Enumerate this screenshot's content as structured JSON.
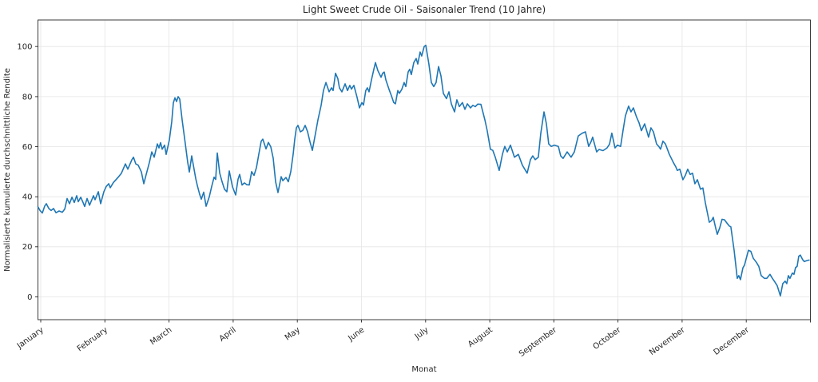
{
  "figure": {
    "title": "Light Sweet Crude Oil - Saisonaler Trend (10 Jahre)",
    "x_axis_label": "Monat",
    "y_axis_label": "Normalisierte kumulierte durchschnittliche Rendite"
  },
  "colors": {
    "line": "#1f77b4",
    "grid": "#e5e5e5",
    "spine": "#262626",
    "text": "#262626",
    "background": "#ffffff"
  },
  "chart_data": {
    "type": "line",
    "title": "Light Sweet Crude Oil - Saisonaler Trend (10 Jahre)",
    "xlabel": "Monat",
    "ylabel": "Normalisierte kumulierte durchschnittliche Rendite",
    "categories": [
      "January",
      "February",
      "March",
      "April",
      "May",
      "June",
      "July",
      "August",
      "September",
      "October",
      "November",
      "December"
    ],
    "x_tick_positions": [
      0,
      1,
      2,
      3,
      4,
      5,
      6,
      7,
      8,
      9,
      10,
      11
    ],
    "x_units": "month_index (0 = January tick, fractional = position within month)",
    "yticks": [
      0,
      20,
      40,
      60,
      80,
      100
    ],
    "xlim": [
      -0.044,
      12.0
    ],
    "ylim": [
      -9.1,
      110.6
    ],
    "grid": true,
    "legend": false,
    "line_color": "#1f77b4",
    "series": [
      {
        "x": [
          -0.044,
          -0.012,
          0.025,
          0.062,
          0.087,
          0.125,
          0.162,
          0.199,
          0.237,
          0.286,
          0.336,
          0.374,
          0.411,
          0.448,
          0.486,
          0.523,
          0.56,
          0.585,
          0.623,
          0.66,
          0.685,
          0.722,
          0.76,
          0.822,
          0.847,
          0.897,
          0.934,
          0.984,
          1.021,
          1.059,
          1.083,
          1.133,
          1.171,
          1.208,
          1.258,
          1.32,
          1.357,
          1.42,
          1.445,
          1.482,
          1.519,
          1.569,
          1.606,
          1.644,
          1.694,
          1.731,
          1.768,
          1.818,
          1.843,
          1.868,
          1.893,
          1.93,
          1.955,
          2.005,
          2.042,
          2.067,
          2.092,
          2.117,
          2.142,
          2.167,
          2.204,
          2.254,
          2.291,
          2.316,
          2.354,
          2.416,
          2.441,
          2.478,
          2.503,
          2.54,
          2.578,
          2.628,
          2.665,
          2.702,
          2.727,
          2.752,
          2.79,
          2.827,
          2.864,
          2.902,
          2.939,
          2.989,
          3.039,
          3.076,
          3.101,
          3.138,
          3.176,
          3.213,
          3.25,
          3.288,
          3.325,
          3.362,
          3.4,
          3.437,
          3.462,
          3.512,
          3.549,
          3.587,
          3.624,
          3.661,
          3.699,
          3.748,
          3.773,
          3.823,
          3.86,
          3.898,
          3.935,
          3.96,
          3.985,
          4.01,
          4.047,
          4.085,
          4.122,
          4.159,
          4.197,
          4.234,
          4.284,
          4.321,
          4.371,
          4.408,
          4.446,
          4.496,
          4.533,
          4.558,
          4.595,
          4.632,
          4.657,
          4.695,
          4.745,
          4.782,
          4.819,
          4.844,
          4.882,
          4.932,
          4.969,
          5.006,
          5.031,
          5.068,
          5.093,
          5.118,
          5.156,
          5.193,
          5.218,
          5.255,
          5.305,
          5.33,
          5.355,
          5.38,
          5.43,
          5.467,
          5.504,
          5.529,
          5.567,
          5.591,
          5.629,
          5.666,
          5.691,
          5.728,
          5.753,
          5.778,
          5.816,
          5.853,
          5.878,
          5.915,
          5.94,
          5.978,
          6.003,
          6.052,
          6.09,
          6.127,
          6.164,
          6.202,
          6.239,
          6.277,
          6.326,
          6.364,
          6.401,
          6.451,
          6.488,
          6.526,
          6.575,
          6.613,
          6.65,
          6.7,
          6.737,
          6.775,
          6.812,
          6.862,
          6.924,
          6.961,
          7.011,
          7.048,
          7.086,
          7.148,
          7.198,
          7.235,
          7.273,
          7.323,
          7.385,
          7.447,
          7.509,
          7.584,
          7.634,
          7.671,
          7.709,
          7.758,
          7.796,
          7.846,
          7.883,
          7.92,
          7.958,
          8.008,
          8.07,
          8.107,
          8.144,
          8.207,
          8.269,
          8.319,
          8.381,
          8.443,
          8.493,
          8.543,
          8.58,
          8.605,
          8.667,
          8.705,
          8.767,
          8.829,
          8.867,
          8.904,
          8.954,
          8.991,
          9.041,
          9.078,
          9.115,
          9.165,
          9.203,
          9.24,
          9.29,
          9.327,
          9.365,
          9.415,
          9.452,
          9.477,
          9.514,
          9.552,
          9.601,
          9.639,
          9.664,
          9.701,
          9.739,
          9.801,
          9.838,
          9.863,
          9.9,
          9.925,
          9.963,
          10.012,
          10.05,
          10.087,
          10.125,
          10.162,
          10.199,
          10.237,
          10.286,
          10.324,
          10.361,
          10.398,
          10.423,
          10.461,
          10.486,
          10.523,
          10.548,
          10.585,
          10.623,
          10.66,
          10.698,
          10.735,
          10.76,
          10.785,
          10.81,
          10.834,
          10.859,
          10.884,
          10.909,
          10.947,
          10.972,
          11.034,
          11.071,
          11.109,
          11.158,
          11.196,
          11.233,
          11.283,
          11.32,
          11.37,
          11.407,
          11.445,
          11.482,
          11.532,
          11.569,
          11.607,
          11.631,
          11.656,
          11.681,
          11.718,
          11.743,
          11.768,
          11.793,
          11.818,
          11.843,
          11.88,
          11.905,
          11.943,
          11.98
        ],
        "y": [
          36.0,
          34.5,
          33.5,
          36.3,
          37.2,
          35.3,
          34.5,
          35.3,
          33.6,
          34.3,
          33.8,
          35.1,
          39.3,
          37.2,
          39.8,
          37.7,
          40.4,
          38.0,
          39.8,
          37.7,
          36.1,
          39.3,
          36.6,
          40.4,
          38.8,
          42.0,
          37.2,
          42.0,
          44.1,
          45.2,
          43.6,
          45.7,
          46.8,
          47.8,
          49.4,
          53.1,
          51.0,
          54.7,
          55.8,
          53.1,
          52.6,
          49.9,
          45.2,
          48.9,
          53.7,
          57.9,
          55.8,
          61.1,
          59.5,
          61.6,
          59.0,
          60.6,
          56.9,
          62.7,
          70.0,
          77.5,
          79.5,
          78.0,
          80.0,
          79.0,
          70.7,
          61.1,
          53.7,
          49.9,
          56.3,
          47.3,
          44.5,
          40.9,
          39.0,
          41.8,
          36.2,
          40.0,
          44.1,
          47.8,
          46.9,
          57.5,
          49.5,
          46.0,
          43.0,
          42.0,
          50.3,
          44.0,
          40.7,
          47.0,
          48.9,
          44.7,
          45.5,
          44.8,
          44.7,
          50.0,
          48.5,
          51.6,
          57.0,
          62.2,
          63.0,
          59.1,
          61.7,
          59.9,
          55.4,
          46.0,
          41.7,
          48.0,
          46.4,
          47.7,
          46.0,
          50.0,
          57.0,
          63.0,
          67.5,
          68.5,
          65.9,
          66.5,
          68.5,
          66.0,
          62.0,
          58.5,
          65.4,
          70.7,
          76.5,
          82.4,
          85.6,
          81.9,
          83.5,
          82.4,
          89.3,
          87.2,
          83.5,
          81.9,
          85.1,
          82.4,
          84.5,
          83.0,
          84.5,
          79.7,
          75.5,
          77.6,
          76.6,
          82.4,
          83.5,
          81.9,
          86.7,
          90.9,
          93.6,
          90.4,
          87.7,
          89.3,
          89.8,
          86.7,
          82.9,
          80.3,
          77.6,
          77.1,
          82.4,
          81.3,
          82.9,
          85.6,
          84.0,
          89.8,
          90.9,
          88.8,
          93.6,
          95.2,
          93.0,
          97.8,
          96.2,
          100.0,
          100.5,
          93.0,
          85.6,
          84.0,
          85.6,
          92.0,
          88.3,
          81.3,
          79.2,
          81.9,
          77.1,
          73.9,
          78.7,
          76.0,
          77.6,
          74.9,
          77.1,
          75.5,
          76.5,
          76.0,
          77.0,
          76.9,
          70.7,
          66.4,
          59.0,
          58.5,
          55.8,
          50.5,
          57.0,
          60.1,
          57.9,
          60.6,
          55.8,
          56.9,
          52.6,
          49.4,
          54.8,
          56.3,
          54.8,
          55.8,
          65.4,
          73.9,
          69.1,
          61.1,
          60.1,
          60.6,
          60.1,
          56.3,
          55.3,
          57.9,
          55.8,
          57.9,
          64.3,
          65.4,
          65.9,
          60.1,
          62.0,
          63.8,
          57.9,
          58.9,
          58.4,
          59.5,
          61.0,
          65.4,
          59.5,
          60.6,
          60.1,
          66.4,
          72.3,
          76.2,
          73.9,
          75.5,
          71.8,
          69.6,
          66.4,
          69.1,
          66.0,
          63.8,
          67.5,
          65.9,
          61.1,
          60.0,
          59.0,
          62.2,
          61.1,
          56.9,
          55.0,
          53.7,
          52.0,
          50.5,
          51.0,
          46.8,
          48.5,
          51.0,
          48.9,
          49.4,
          45.2,
          46.8,
          43.0,
          43.5,
          37.7,
          33.0,
          29.8,
          30.5,
          31.8,
          27.5,
          25.0,
          27.5,
          31.0,
          30.8,
          29.5,
          28.3,
          28.0,
          23.4,
          18.6,
          13.2,
          7.4,
          8.5,
          6.9,
          11.6,
          12.7,
          18.6,
          18.2,
          15.4,
          13.8,
          12.2,
          8.5,
          7.4,
          7.4,
          9.0,
          7.4,
          6.0,
          4.5,
          0.4,
          5.3,
          6.3,
          5.3,
          8.5,
          7.4,
          9.5,
          9.0,
          11.7,
          12.2,
          16.2,
          16.7,
          14.8,
          14.1,
          14.5,
          14.7
        ]
      }
    ]
  }
}
